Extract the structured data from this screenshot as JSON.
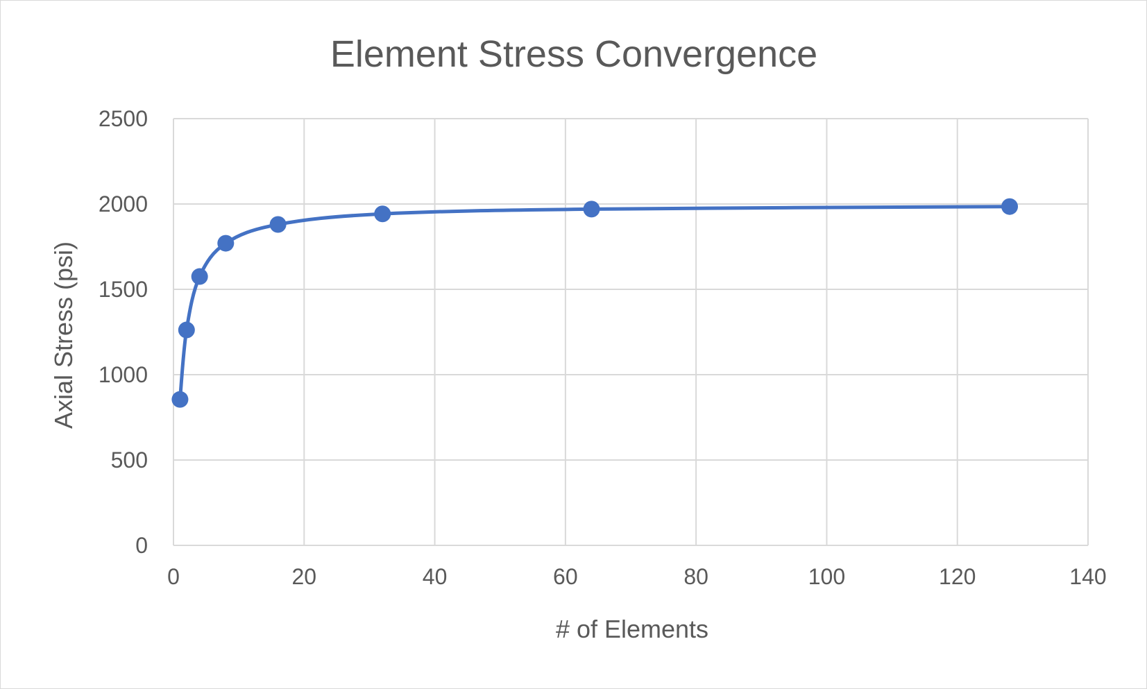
{
  "chart_data": {
    "type": "scatter",
    "title": "Element Stress Convergence",
    "xlabel": "# of Elements",
    "ylabel": "Axial Stress (psi)",
    "xlim": [
      0,
      140
    ],
    "ylim": [
      0,
      2500
    ],
    "xticks": [
      0,
      20,
      40,
      60,
      80,
      100,
      120,
      140
    ],
    "yticks": [
      0,
      500,
      1000,
      1500,
      2000,
      2500
    ],
    "grid": true,
    "legend": "none",
    "smooth_line": true,
    "series": [
      {
        "color": "#4472c4",
        "x": [
          1,
          2,
          4,
          8,
          16,
          32,
          64,
          128
        ],
        "y": [
          855,
          1262,
          1575,
          1770,
          1880,
          1942,
          1970,
          1985
        ]
      }
    ]
  }
}
